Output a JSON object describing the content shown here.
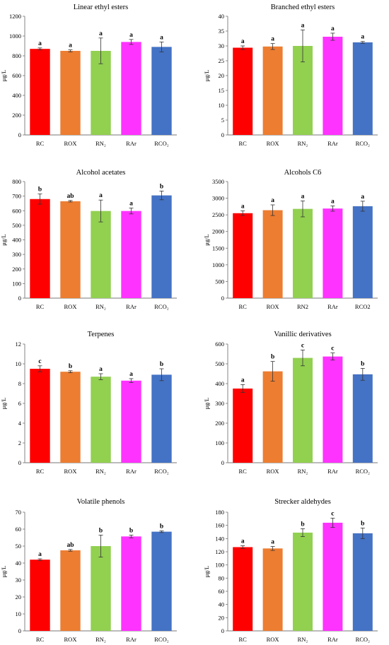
{
  "figure": {
    "categories": [
      "RC",
      "ROX",
      "RN2",
      "RAr",
      "RCO2"
    ],
    "ylabel": "μg/L"
  },
  "colors": {
    "RC": "#ff0000",
    "ROX": "#ed7d31",
    "RN2": "#92d050",
    "RAr": "#ff33ff",
    "RCO2": "#4472c4"
  },
  "chart_data": [
    {
      "type": "bar",
      "title": "Linear ethyl esters",
      "ylabel": "μg/L",
      "categories": [
        "RC",
        "ROX",
        "RN2",
        "RAr",
        "RCO2"
      ],
      "category_labels": [
        "RC",
        "ROX",
        "RN₂",
        "RAr",
        "RCO₂"
      ],
      "values": [
        870,
        850,
        850,
        940,
        890
      ],
      "errors": [
        10,
        10,
        130,
        25,
        50
      ],
      "letters": [
        "a",
        "a",
        "a",
        "a",
        "a"
      ],
      "ylim": [
        0,
        1200
      ],
      "yticks": [
        0,
        200,
        400,
        600,
        800,
        1000,
        1200
      ],
      "grid": false
    },
    {
      "type": "bar",
      "title": "Branched ethyl esters",
      "ylabel": "μg/L",
      "categories": [
        "RC",
        "ROX",
        "RN2",
        "RAr",
        "RCO2"
      ],
      "category_labels": [
        "RC",
        "ROX",
        "RN₂",
        "RAr",
        "RCO₂"
      ],
      "values": [
        29.4,
        29.8,
        30,
        33.1,
        31.2
      ],
      "errors": [
        0.6,
        1,
        5.4,
        1.2,
        0.3
      ],
      "letters": [
        "a",
        "a",
        "a",
        "a",
        "a"
      ],
      "ylim": [
        0,
        40
      ],
      "yticks": [
        0,
        5,
        10,
        15,
        20,
        25,
        30,
        35,
        40
      ],
      "grid": false
    },
    {
      "type": "bar",
      "title": "Alcohol acetates",
      "ylabel": "μg/L",
      "categories": [
        "RC",
        "ROX",
        "RN2",
        "RAr",
        "RCO2"
      ],
      "category_labels": [
        "RC",
        "ROX",
        "RN₂",
        "RAr",
        "RCO₂"
      ],
      "values": [
        680,
        665,
        598,
        598,
        705
      ],
      "errors": [
        35,
        5,
        75,
        20,
        30
      ],
      "letters": [
        "b",
        "ab",
        "a",
        "a",
        "b"
      ],
      "ylim": [
        0,
        800
      ],
      "yticks": [
        0,
        100,
        200,
        300,
        400,
        500,
        600,
        700,
        800
      ],
      "grid": false
    },
    {
      "type": "bar",
      "title": "Alcohols C6",
      "ylabel": "μg/L",
      "categories": [
        "RC",
        "ROX",
        "RN2",
        "RAr",
        "RCO2"
      ],
      "category_labels": [
        "RC",
        "ROX",
        "RN2",
        "RAr",
        "RCO2"
      ],
      "values": [
        2550,
        2640,
        2680,
        2690,
        2760
      ],
      "errors": [
        70,
        160,
        240,
        80,
        150
      ],
      "letters": [
        "a",
        "a",
        "a",
        "a",
        "a"
      ],
      "ylim": [
        0,
        3500
      ],
      "yticks": [
        0,
        500,
        1000,
        1500,
        2000,
        2500,
        3000,
        3500
      ],
      "grid": false
    },
    {
      "type": "bar",
      "title": "Terpenes",
      "ylabel": "μg/L",
      "categories": [
        "RC",
        "ROX",
        "RN2",
        "RAr",
        "RCO2"
      ],
      "category_labels": [
        "RC",
        "ROX",
        "RN₂",
        "RAr",
        "RCO₂"
      ],
      "values": [
        9.5,
        9.2,
        8.7,
        8.3,
        8.9
      ],
      "errors": [
        0.3,
        0.1,
        0.3,
        0.2,
        0.6
      ],
      "letters": [
        "c",
        "b",
        "a",
        "a",
        "b"
      ],
      "ylim": [
        0,
        12
      ],
      "yticks": [
        0,
        2,
        4,
        6,
        8,
        10,
        12
      ],
      "grid": false
    },
    {
      "type": "bar",
      "title": "Vanillic derivatives",
      "ylabel": "μg/L",
      "categories": [
        "RC",
        "ROX",
        "RN2",
        "RAr",
        "RCO2"
      ],
      "category_labels": [
        "RC",
        "ROX",
        "RN₂",
        "RAr",
        "RCO₂"
      ],
      "values": [
        375,
        462,
        530,
        537,
        447
      ],
      "errors": [
        20,
        50,
        40,
        18,
        30
      ],
      "letters": [
        "a",
        "b",
        "c",
        "c",
        "b"
      ],
      "ylim": [
        0,
        600
      ],
      "yticks": [
        0,
        100,
        200,
        300,
        400,
        500,
        600
      ],
      "grid": false
    },
    {
      "type": "bar",
      "title": "Volatile phenols",
      "ylabel": "μg/L",
      "categories": [
        "RC",
        "ROX",
        "RN2",
        "RAr",
        "RCO2"
      ],
      "category_labels": [
        "RC",
        "ROX",
        "RN₂",
        "RAr",
        "RCO₂"
      ],
      "values": [
        42,
        47.5,
        50,
        55.7,
        58.5
      ],
      "errors": [
        0.5,
        0.5,
        6.5,
        0.8,
        0.5
      ],
      "letters": [
        "a",
        "ab",
        "b",
        "b",
        "b"
      ],
      "ylim": [
        0,
        70
      ],
      "yticks": [
        0,
        10,
        20,
        30,
        40,
        50,
        60,
        70
      ],
      "grid": false
    },
    {
      "type": "bar",
      "title": "Strecker aldehydes",
      "ylabel": "μg/L",
      "categories": [
        "RC",
        "ROX",
        "RN2",
        "RAr",
        "RCO2"
      ],
      "category_labels": [
        "RC",
        "ROX",
        "RN₂",
        "RAr",
        "RCO₂"
      ],
      "values": [
        127,
        125,
        149,
        164,
        148
      ],
      "errors": [
        2,
        3,
        6,
        7,
        8
      ],
      "letters": [
        "a",
        "a",
        "b",
        "c",
        "b"
      ],
      "ylim": [
        0,
        180
      ],
      "yticks": [
        0,
        20,
        40,
        60,
        80,
        100,
        120,
        140,
        160,
        180
      ],
      "grid": false
    }
  ]
}
